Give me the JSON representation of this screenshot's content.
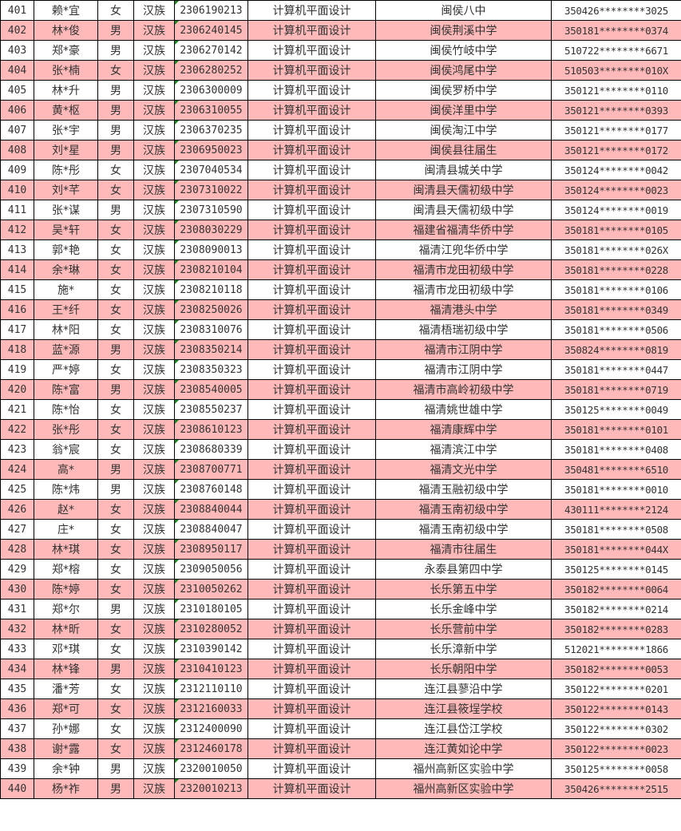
{
  "colors": {
    "highlight_row": "#FFB9B9",
    "border": "#000000",
    "comment_marker": "#1a8a1a"
  },
  "rows": [
    [
      "401",
      "赖*宜",
      "女",
      "汉族",
      "2306190213",
      "计算机平面设计",
      "闽侯八中",
      "350426********3025"
    ],
    [
      "402",
      "林*俊",
      "男",
      "汉族",
      "2306240145",
      "计算机平面设计",
      "闽侯荆溪中学",
      "350181********0374"
    ],
    [
      "403",
      "郑*豪",
      "男",
      "汉族",
      "2306270142",
      "计算机平面设计",
      "闽侯竹岐中学",
      "510722********6671"
    ],
    [
      "404",
      "张*楠",
      "女",
      "汉族",
      "2306280252",
      "计算机平面设计",
      "闽侯鸿尾中学",
      "510503********010X"
    ],
    [
      "405",
      "林*升",
      "男",
      "汉族",
      "2306300009",
      "计算机平面设计",
      "闽侯罗桥中学",
      "350121********0110"
    ],
    [
      "406",
      "黄*枢",
      "男",
      "汉族",
      "2306310055",
      "计算机平面设计",
      "闽侯洋里中学",
      "350121********0393"
    ],
    [
      "407",
      "张*宇",
      "男",
      "汉族",
      "2306370235",
      "计算机平面设计",
      "闽侯淘江中学",
      "350121********0177"
    ],
    [
      "408",
      "刘*星",
      "男",
      "汉族",
      "2306950023",
      "计算机平面设计",
      "闽侯县往届生",
      "350121********0172"
    ],
    [
      "409",
      "陈*彤",
      "女",
      "汉族",
      "2307040534",
      "计算机平面设计",
      "闽清县城关中学",
      "350124********0042"
    ],
    [
      "410",
      "刘*芊",
      "女",
      "汉族",
      "2307310022",
      "计算机平面设计",
      "闽清县天儒初级中学",
      "350124********0023"
    ],
    [
      "411",
      "张*谋",
      "男",
      "汉族",
      "2307310590",
      "计算机平面设计",
      "闽清县天儒初级中学",
      "350124********0019"
    ],
    [
      "412",
      "吴*轩",
      "女",
      "汉族",
      "2308030229",
      "计算机平面设计",
      "福建省福清华侨中学",
      "350181********0105"
    ],
    [
      "413",
      "郭*艳",
      "女",
      "汉族",
      "2308090013",
      "计算机平面设计",
      "福清江兜华侨中学",
      "350181********026X"
    ],
    [
      "414",
      "余*琳",
      "女",
      "汉族",
      "2308210104",
      "计算机平面设计",
      "福清市龙田初级中学",
      "350181********0228"
    ],
    [
      "415",
      "施*",
      "女",
      "汉族",
      "2308210118",
      "计算机平面设计",
      "福清市龙田初级中学",
      "350181********0106"
    ],
    [
      "416",
      "王*纤",
      "女",
      "汉族",
      "2308250026",
      "计算机平面设计",
      "福清港头中学",
      "350181********0349"
    ],
    [
      "417",
      "林*阳",
      "女",
      "汉族",
      "2308310076",
      "计算机平面设计",
      "福清梧瑞初级中学",
      "350181********0506"
    ],
    [
      "418",
      "蓝*源",
      "男",
      "汉族",
      "2308350214",
      "计算机平面设计",
      "福清市江阴中学",
      "350824********0819"
    ],
    [
      "419",
      "严*婷",
      "女",
      "汉族",
      "2308350323",
      "计算机平面设计",
      "福清市江阴中学",
      "350181********0447"
    ],
    [
      "420",
      "陈*富",
      "男",
      "汉族",
      "2308540005",
      "计算机平面设计",
      "福清市高岭初级中学",
      "350181********0719"
    ],
    [
      "421",
      "陈*怡",
      "女",
      "汉族",
      "2308550237",
      "计算机平面设计",
      "福清姚世雄中学",
      "350125********0049"
    ],
    [
      "422",
      "张*彤",
      "女",
      "汉族",
      "2308610123",
      "计算机平面设计",
      "福清康辉中学",
      "350181********0101"
    ],
    [
      "423",
      "翁*宸",
      "女",
      "汉族",
      "2308680339",
      "计算机平面设计",
      "福清滨江中学",
      "350181********0408"
    ],
    [
      "424",
      "高*",
      "男",
      "汉族",
      "2308700771",
      "计算机平面设计",
      "福清文光中学",
      "350481********6510"
    ],
    [
      "425",
      "陈*炜",
      "男",
      "汉族",
      "2308760148",
      "计算机平面设计",
      "福清玉融初级中学",
      "350181********0010"
    ],
    [
      "426",
      "赵*",
      "女",
      "汉族",
      "2308840044",
      "计算机平面设计",
      "福清玉南初级中学",
      "430111********2124"
    ],
    [
      "427",
      "庄*",
      "女",
      "汉族",
      "2308840047",
      "计算机平面设计",
      "福清玉南初级中学",
      "350181********0508"
    ],
    [
      "428",
      "林*琪",
      "女",
      "汉族",
      "2308950117",
      "计算机平面设计",
      "福清市往届生",
      "350181********044X"
    ],
    [
      "429",
      "郑*榕",
      "女",
      "汉族",
      "2309050056",
      "计算机平面设计",
      "永泰县第四中学",
      "350125********0145"
    ],
    [
      "430",
      "陈*婷",
      "女",
      "汉族",
      "2310050262",
      "计算机平面设计",
      "长乐第五中学",
      "350182********0064"
    ],
    [
      "431",
      "郑*尔",
      "男",
      "汉族",
      "2310180105",
      "计算机平面设计",
      "长乐金峰中学",
      "350182********0214"
    ],
    [
      "432",
      "林*昕",
      "女",
      "汉族",
      "2310280052",
      "计算机平面设计",
      "长乐营前中学",
      "350182********0283"
    ],
    [
      "433",
      "邓*琪",
      "女",
      "汉族",
      "2310390142",
      "计算机平面设计",
      "长乐漳新中学",
      "512021********1866"
    ],
    [
      "434",
      "林*锋",
      "男",
      "汉族",
      "2310410123",
      "计算机平面设计",
      "长乐朝阳中学",
      "350182********0053"
    ],
    [
      "435",
      "潘*芳",
      "女",
      "汉族",
      "2312110110",
      "计算机平面设计",
      "连江县蓼沿中学",
      "350122********0201"
    ],
    [
      "436",
      "郑*可",
      "女",
      "汉族",
      "2312160033",
      "计算机平面设计",
      "连江县筱埕学校",
      "350122********0143"
    ],
    [
      "437",
      "孙*娜",
      "女",
      "汉族",
      "2312400090",
      "计算机平面设计",
      "连江县岱江学校",
      "350122********0302"
    ],
    [
      "438",
      "谢*露",
      "女",
      "汉族",
      "2312460178",
      "计算机平面设计",
      "连江黄如论中学",
      "350122********0023"
    ],
    [
      "439",
      "余*钟",
      "男",
      "汉族",
      "2320010050",
      "计算机平面设计",
      "福州高新区实验中学",
      "350125********0058"
    ],
    [
      "440",
      "杨*祚",
      "男",
      "汉族",
      "2320010213",
      "计算机平面设计",
      "福州高新区实验中学",
      "350426********2515"
    ]
  ]
}
